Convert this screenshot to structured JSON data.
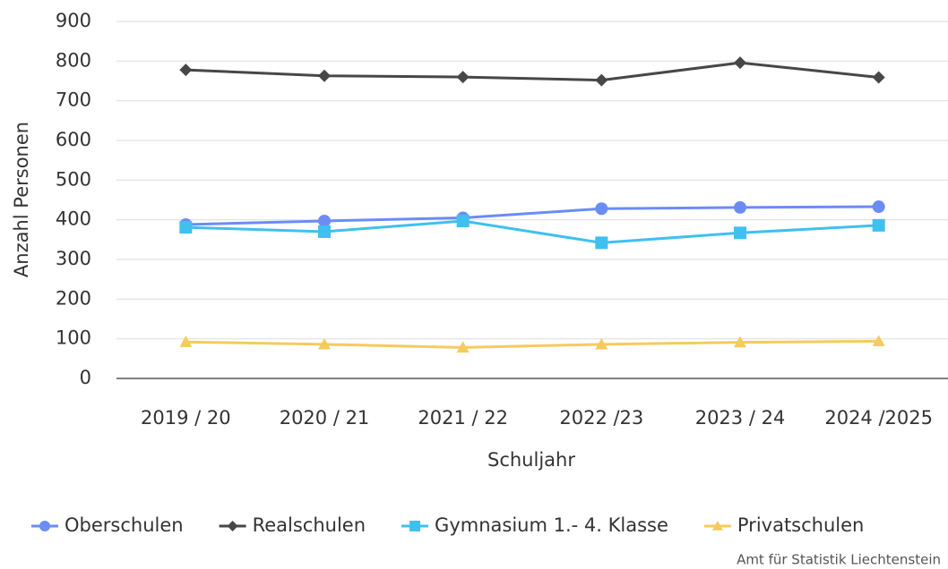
{
  "chart_data": {
    "type": "line",
    "categories": [
      "2019 / 20",
      "2020 / 21",
      "2021 / 22",
      "2022 /23",
      "2023 / 24",
      "2024 /2025"
    ],
    "series": [
      {
        "name": "Oberschulen",
        "color": "#6b8cf5",
        "marker": "circle",
        "values": [
          388,
          397,
          405,
          428,
          431,
          433
        ]
      },
      {
        "name": "Realschulen",
        "color": "#474747",
        "marker": "diamond",
        "values": [
          778,
          763,
          760,
          752,
          796,
          759
        ]
      },
      {
        "name": "Gymnasium 1.- 4. Klasse",
        "color": "#3fc0ef",
        "marker": "square",
        "values": [
          381,
          370,
          397,
          342,
          367,
          386
        ]
      },
      {
        "name": "Privatschulen",
        "color": "#f5cb5c",
        "marker": "triangle",
        "values": [
          92,
          86,
          78,
          86,
          91,
          94
        ]
      }
    ],
    "ylim": [
      0,
      900
    ],
    "yticks": [
      0,
      100,
      200,
      300,
      400,
      500,
      600,
      700,
      800,
      900
    ],
    "grid": true,
    "xlabel": "Schuljahr",
    "ylabel": "Anzahl Personen",
    "legend": "bottom",
    "source": "Amt für Statistik Liechtenstein"
  }
}
